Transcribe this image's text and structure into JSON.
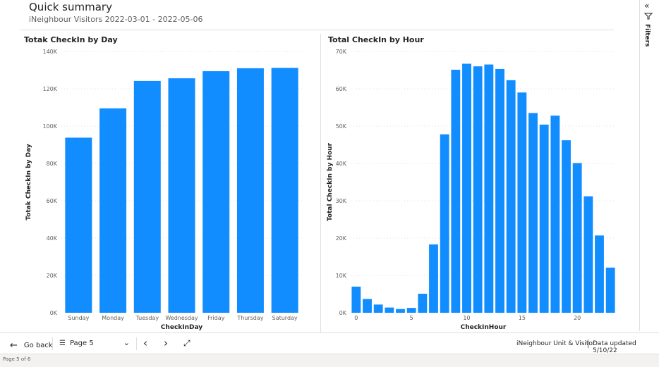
{
  "header": {
    "title": "Quick summary",
    "subtitle": "iNeighbour Visitors 2022-03-01 - 2022-05-06"
  },
  "filters_pane": {
    "label": "Filters",
    "collapse_icon": "double-chevron-left-icon",
    "filter_icon": "funnel-icon"
  },
  "colors": {
    "bar": "#118dff",
    "grid": "#e1dfdd",
    "axis_text": "#605e5c"
  },
  "chart_data": [
    {
      "type": "bar",
      "title": "Totak CheckIn by Day",
      "xlabel": "CheckInDay",
      "ylabel": "Totak CheckIn by Day",
      "categories": [
        "Sunday",
        "Monday",
        "Tuesday",
        "Wednesday",
        "Friday",
        "Thursday",
        "Saturday"
      ],
      "values": [
        93800,
        109500,
        124200,
        125600,
        129400,
        131000,
        131200
      ],
      "ylim": [
        0,
        140000
      ],
      "yticks": [
        0,
        20000,
        40000,
        60000,
        80000,
        100000,
        120000,
        140000
      ],
      "ytick_labels": [
        "0K",
        "20K",
        "40K",
        "60K",
        "80K",
        "100K",
        "120K",
        "140K"
      ],
      "grid": true
    },
    {
      "type": "bar",
      "title": "Total CheckIn by Hour",
      "xlabel": "CheckInHour",
      "ylabel": "Total CheckIn by Hour",
      "x": [
        0,
        1,
        2,
        3,
        4,
        5,
        6,
        7,
        8,
        9,
        10,
        11,
        12,
        13,
        14,
        15,
        16,
        17,
        18,
        19,
        20,
        21,
        22,
        23
      ],
      "values": [
        7000,
        3700,
        2200,
        1400,
        1000,
        1300,
        5100,
        18300,
        47800,
        65100,
        66700,
        66000,
        66500,
        65300,
        62300,
        59000,
        53500,
        50400,
        52800,
        46200,
        40100,
        31200,
        20700,
        12100
      ],
      "ylim": [
        0,
        70000
      ],
      "yticks": [
        0,
        10000,
        20000,
        30000,
        40000,
        50000,
        60000,
        70000
      ],
      "ytick_labels": [
        "0K",
        "10K",
        "20K",
        "30K",
        "40K",
        "50K",
        "60K",
        "70K"
      ],
      "xticks": [
        0,
        5,
        10,
        15,
        20
      ],
      "xtick_labels": [
        "0",
        "5",
        "10",
        "15",
        "20"
      ],
      "grid": true
    }
  ],
  "bottom_bar": {
    "go_back_label": "Go back",
    "page_label": "Page 5",
    "report_name": "iNeighbour Unit & Visitor",
    "data_updated": "Data updated 5/10/22"
  },
  "status_bar": {
    "page_count": "Page 5 of 6"
  }
}
